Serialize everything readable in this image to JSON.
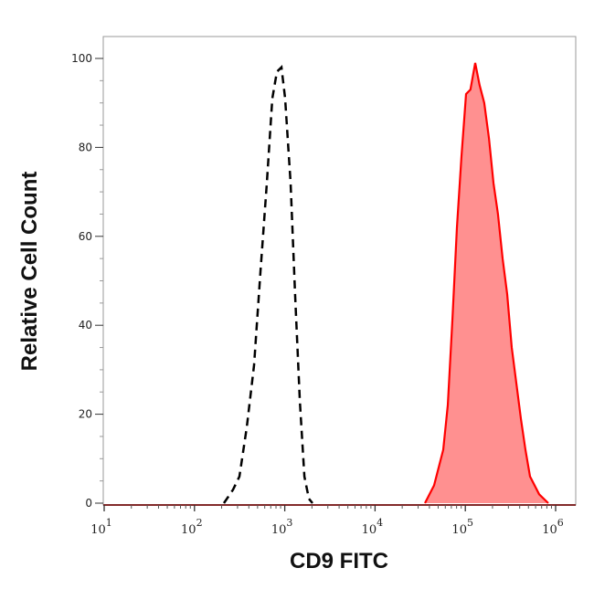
{
  "chart_data": {
    "type": "area",
    "title": "",
    "xlabel": "CD9 FITC",
    "ylabel": "Relative Cell Count",
    "x_scale": "log",
    "xlim": [
      8,
      1650000
    ],
    "ylim": [
      0,
      100
    ],
    "x_ticks": [
      {
        "value": 10,
        "base": "10",
        "exp": "1"
      },
      {
        "value": 100,
        "base": "10",
        "exp": "2"
      },
      {
        "value": 1000,
        "base": "10",
        "exp": "3"
      },
      {
        "value": 10000,
        "base": "10",
        "exp": "4"
      },
      {
        "value": 100000,
        "base": "10",
        "exp": "5"
      },
      {
        "value": 1000000,
        "base": "10",
        "exp": "6"
      }
    ],
    "y_ticks": [
      "0",
      "20",
      "40",
      "60",
      "80",
      "100"
    ],
    "grid": false,
    "legend": "none",
    "series": [
      {
        "style": "dashed-line",
        "color": "#000000",
        "x": [
          212,
          267,
          315,
          379,
          457,
          538,
          634,
          728,
          818,
          920,
          1010,
          1160,
          1300,
          1470,
          1650,
          1850,
          2030
        ],
        "y": [
          0,
          3,
          6,
          17,
          31,
          52,
          72,
          91,
          97,
          98,
          91,
          72,
          47,
          23,
          6,
          1,
          0
        ]
      },
      {
        "style": "filled",
        "color": "#ff0000",
        "fill": "#ff9090",
        "x": [
          35700,
          45100,
          56900,
          63900,
          71800,
          80700,
          90600,
          101800,
          114000,
          128500,
          144000,
          162000,
          183000,
          205000,
          230000,
          259000,
          291000,
          327000,
          367000,
          412000,
          463000,
          521000,
          657000,
          829000
        ],
        "y": [
          0,
          4,
          12,
          22,
          41,
          62,
          78,
          92,
          93,
          99,
          94,
          90,
          82,
          72,
          65,
          55,
          47,
          35,
          27,
          19,
          12,
          6,
          2,
          0
        ]
      }
    ]
  }
}
